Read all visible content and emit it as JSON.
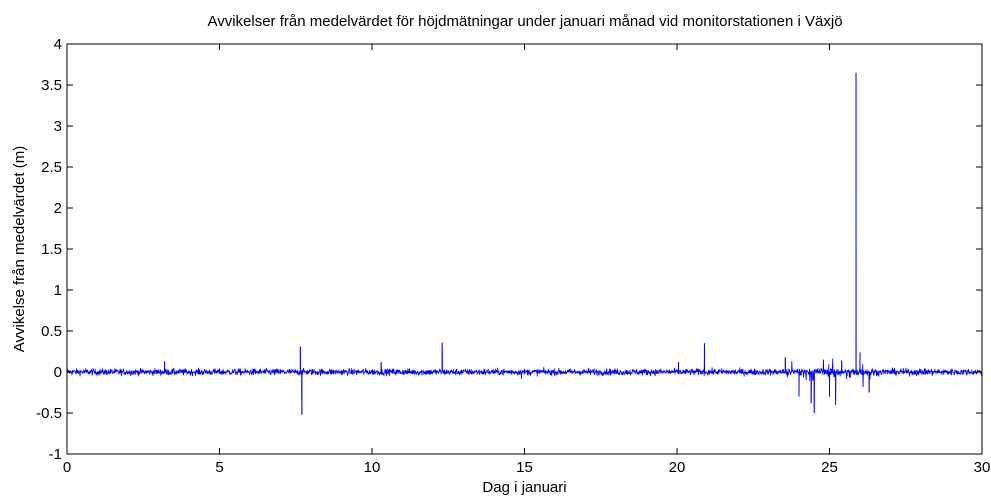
{
  "chart_data": {
    "type": "line",
    "title": "Avvikelser från medelvärdet för höjdmätningar under januari månad vid monitorstationen i Växjö",
    "xlabel": "Dag i januari",
    "ylabel": "Avvikelse från medelvärdet (m)",
    "xlim": [
      0,
      30
    ],
    "ylim": [
      -1,
      4
    ],
    "xticks": [
      0,
      5,
      10,
      15,
      20,
      25,
      30
    ],
    "xtick_labels": [
      "0",
      "5",
      "10",
      "15",
      "20",
      "25",
      "30"
    ],
    "yticks": [
      -1,
      -0.5,
      0,
      0.5,
      1,
      1.5,
      2,
      2.5,
      3,
      3.5,
      4
    ],
    "ytick_labels": [
      "-1",
      "-0.5",
      "0",
      "0.5",
      "1",
      "1.5",
      "2",
      "2.5",
      "3",
      "3.5",
      "4"
    ],
    "grid": false,
    "box": true,
    "series": [
      {
        "color": "#0000ff",
        "noise_amplitude": 0.04,
        "noisy_interval": [
          23.6,
          26.4
        ],
        "noisy_interval_amplitude": 0.12,
        "spikes": [
          {
            "x": 3.2,
            "y": 0.13
          },
          {
            "x": 7.65,
            "y": 0.31
          },
          {
            "x": 7.7,
            "y": -0.52
          },
          {
            "x": 10.3,
            "y": 0.12
          },
          {
            "x": 12.3,
            "y": 0.36
          },
          {
            "x": 14.9,
            "y": -0.08
          },
          {
            "x": 20.05,
            "y": 0.12
          },
          {
            "x": 20.9,
            "y": 0.35
          },
          {
            "x": 23.55,
            "y": 0.18
          },
          {
            "x": 24.0,
            "y": -0.3
          },
          {
            "x": 24.4,
            "y": -0.38
          },
          {
            "x": 24.5,
            "y": -0.5
          },
          {
            "x": 24.8,
            "y": 0.15
          },
          {
            "x": 25.0,
            "y": -0.3
          },
          {
            "x": 25.2,
            "y": -0.4
          },
          {
            "x": 25.4,
            "y": 0.14
          },
          {
            "x": 25.87,
            "y": 3.65
          },
          {
            "x": 26.0,
            "y": 0.24
          },
          {
            "x": 26.1,
            "y": -0.18
          },
          {
            "x": 26.3,
            "y": -0.25
          }
        ]
      }
    ]
  }
}
